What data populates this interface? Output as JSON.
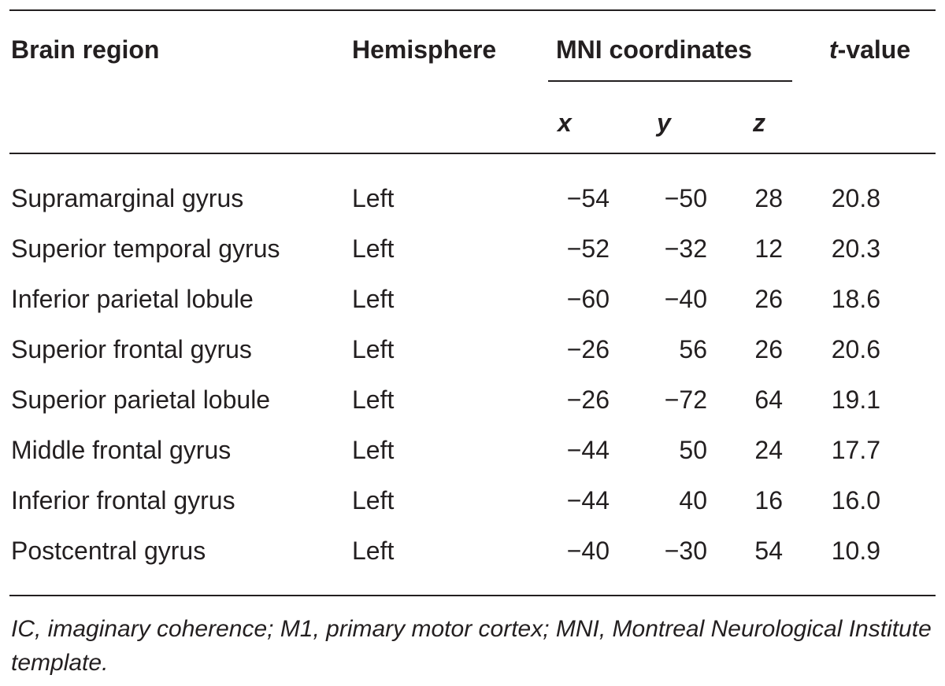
{
  "table": {
    "headers": {
      "region": "Brain region",
      "hemisphere": "Hemisphere",
      "mni": "MNI coordinates",
      "t_prefix": "t",
      "t_suffix": "-value"
    },
    "subheaders": {
      "x": "x",
      "y": "y",
      "z": "z"
    },
    "rows": [
      {
        "region": "Supramarginal gyrus",
        "hemisphere": "Left",
        "x": "−54",
        "y": "−50",
        "z": "28",
        "t": "20.8"
      },
      {
        "region": "Superior temporal gyrus",
        "hemisphere": "Left",
        "x": "−52",
        "y": "−32",
        "z": "12",
        "t": "20.3"
      },
      {
        "region": "Inferior parietal lobule",
        "hemisphere": "Left",
        "x": "−60",
        "y": "−40",
        "z": "26",
        "t": "18.6"
      },
      {
        "region": "Superior frontal gyrus",
        "hemisphere": "Left",
        "x": "−26",
        "y": "56",
        "z": "26",
        "t": "20.6"
      },
      {
        "region": "Superior parietal lobule",
        "hemisphere": "Left",
        "x": "−26",
        "y": "−72",
        "z": "64",
        "t": "19.1"
      },
      {
        "region": "Middle frontal gyrus",
        "hemisphere": "Left",
        "x": "−44",
        "y": "50",
        "z": "24",
        "t": "17.7"
      },
      {
        "region": "Inferior frontal gyrus",
        "hemisphere": "Left",
        "x": "−44",
        "y": "40",
        "z": "16",
        "t": "16.0"
      },
      {
        "region": "Postcentral gyrus",
        "hemisphere": "Left",
        "x": "−40",
        "y": "−30",
        "z": "54",
        "t": "10.9"
      }
    ],
    "footnote": "IC, imaginary coherence; M1, primary motor cortex; MNI, Montreal Neurological Institute template."
  }
}
